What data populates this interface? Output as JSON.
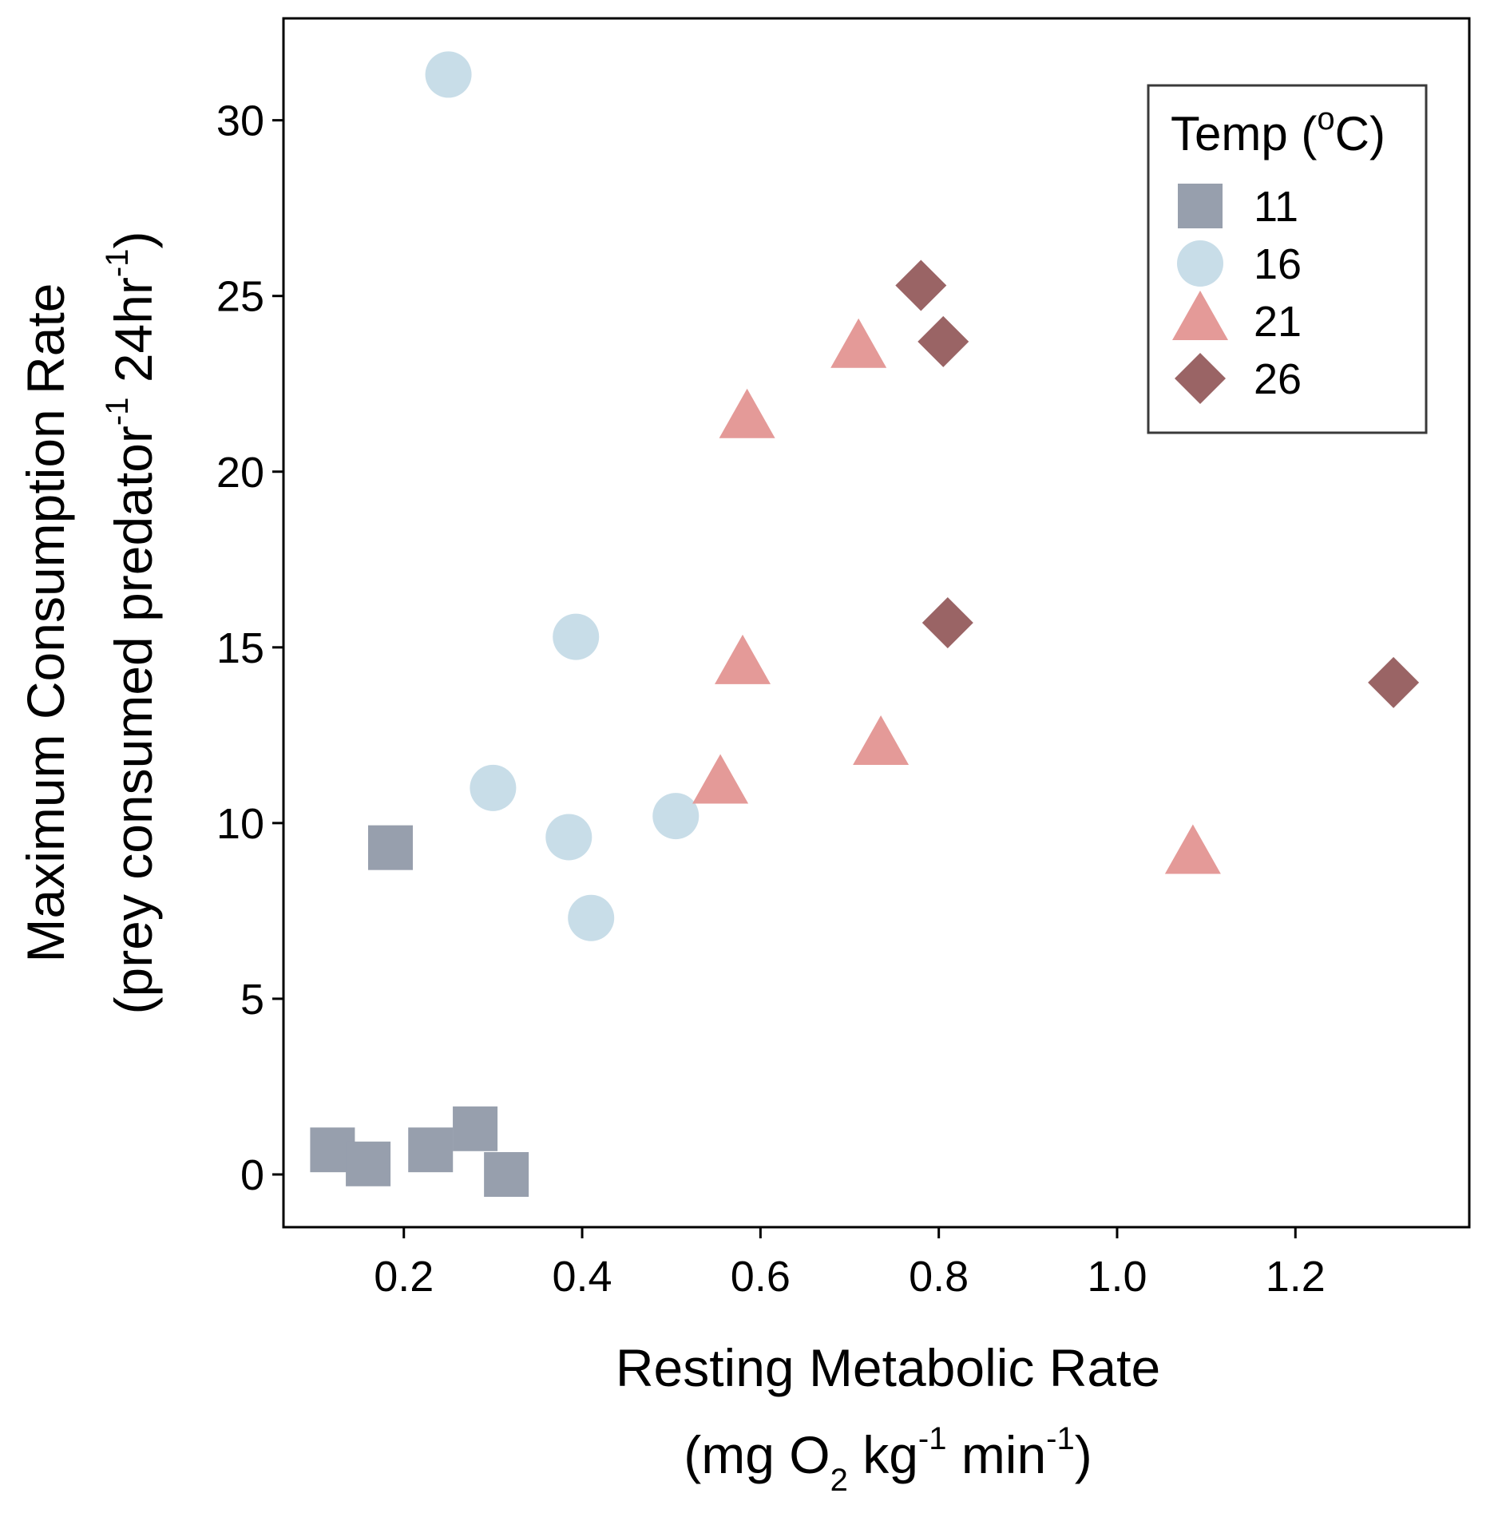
{
  "chart_data": {
    "type": "scatter",
    "xlabel": {
      "line1": "Resting Metabolic Rate",
      "line2": {
        "a": "(mg O",
        "sub": "2",
        "b": " kg",
        "sup1": "-1",
        "c": " min",
        "sup2": "-1",
        "d": ")"
      }
    },
    "ylabel": {
      "line1": "Maximum Consumption Rate",
      "line2": {
        "a": "(prey consumed predator",
        "sup1": "-1",
        "b": " 24hr",
        "sup2": "-1",
        "c": ")"
      }
    },
    "xlim": [
      0.065,
      1.395
    ],
    "ylim": [
      -1.5,
      32.9
    ],
    "x_ticks": [
      0.2,
      0.4,
      0.6,
      0.8,
      1.0,
      1.2
    ],
    "x_tick_labels": [
      "0.2",
      "0.4",
      "0.6",
      "0.8",
      "1.0",
      "1.2"
    ],
    "y_ticks": [
      0,
      5,
      10,
      15,
      20,
      25,
      30
    ],
    "y_tick_labels": [
      "0",
      "5",
      "10",
      "15",
      "20",
      "25",
      "30"
    ],
    "grid": false,
    "legend": {
      "title": {
        "a": "Temp (",
        "sup": "o",
        "b": "C)"
      },
      "position": "top-right"
    },
    "series": [
      {
        "name": "11",
        "shape": "square",
        "color": "#979fad",
        "points": [
          [
            0.12,
            0.7
          ],
          [
            0.16,
            0.3
          ],
          [
            0.185,
            9.3
          ],
          [
            0.23,
            0.7
          ],
          [
            0.28,
            1.3
          ],
          [
            0.315,
            0.0
          ]
        ]
      },
      {
        "name": "16",
        "shape": "circle",
        "color": "#c8dde8",
        "points": [
          [
            0.25,
            31.3
          ],
          [
            0.3,
            11.0
          ],
          [
            0.385,
            9.6
          ],
          [
            0.393,
            15.3
          ],
          [
            0.41,
            7.3
          ],
          [
            0.505,
            10.2
          ]
        ]
      },
      {
        "name": "21",
        "shape": "triangle",
        "color": "#e49a98",
        "points": [
          [
            0.555,
            11.1
          ],
          [
            0.58,
            14.5
          ],
          [
            0.585,
            21.5
          ],
          [
            0.71,
            23.5
          ],
          [
            0.735,
            12.2
          ],
          [
            1.085,
            9.1
          ]
        ]
      },
      {
        "name": "26",
        "shape": "diamond",
        "color": "#9a6465",
        "points": [
          [
            0.78,
            25.3
          ],
          [
            0.805,
            23.7
          ],
          [
            0.81,
            15.7
          ],
          [
            1.31,
            14.0
          ]
        ]
      }
    ]
  }
}
